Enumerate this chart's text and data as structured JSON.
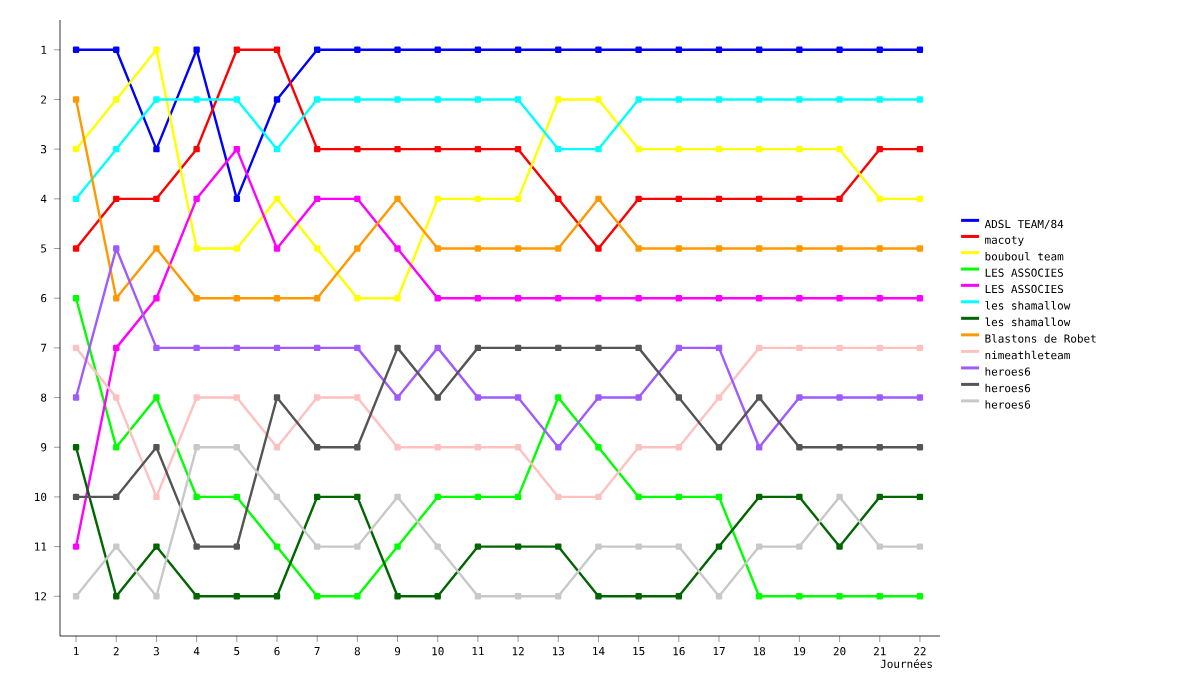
{
  "chart_data": {
    "type": "line",
    "xlabel": "Journées",
    "xlim": [
      0.6,
      22.5
    ],
    "ylim": [
      12.8,
      0.4
    ],
    "xticks": [
      1,
      2,
      3,
      4,
      5,
      6,
      7,
      8,
      9,
      10,
      11,
      12,
      13,
      14,
      15,
      16,
      17,
      18,
      19,
      20,
      21,
      22
    ],
    "yticks": [
      1,
      2,
      3,
      4,
      5,
      6,
      7,
      8,
      9,
      10,
      11,
      12
    ],
    "x": [
      1,
      2,
      3,
      4,
      5,
      6,
      7,
      8,
      9,
      10,
      11,
      12,
      13,
      14,
      15,
      16,
      17,
      18,
      19,
      20,
      21,
      22
    ],
    "legend": "right",
    "marker": "square",
    "line_style": "solid",
    "grid": false,
    "series": [
      {
        "name": "ADSL TEAM/84",
        "color": "#0000ff",
        "values": [
          1,
          1,
          3,
          1,
          4,
          2,
          1,
          1,
          1,
          1,
          1,
          1,
          1,
          1,
          1,
          1,
          1,
          1,
          1,
          1,
          1,
          1
        ]
      },
      {
        "name": "macoty",
        "color": "#ff0000",
        "values": [
          5,
          4,
          4,
          3,
          1,
          1,
          3,
          3,
          3,
          3,
          3,
          3,
          4,
          5,
          4,
          4,
          4,
          4,
          4,
          4,
          3,
          3
        ]
      },
      {
        "name": "bouboul team",
        "color": "#ffff00",
        "values": [
          3,
          2,
          1,
          5,
          5,
          4,
          5,
          6,
          6,
          4,
          4,
          4,
          2,
          2,
          3,
          3,
          3,
          3,
          3,
          3,
          4,
          4
        ]
      },
      {
        "name": "LES ASSOCIES",
        "color": "#00ff00",
        "values": [
          6,
          9,
          8,
          10,
          10,
          11,
          12,
          12,
          11,
          10,
          10,
          10,
          8,
          9,
          10,
          10,
          10,
          12,
          12,
          12,
          12,
          12
        ]
      },
      {
        "name": "LES ASSOCIES",
        "color": "#ff00ff",
        "values": [
          11,
          7,
          6,
          4,
          3,
          5,
          4,
          4,
          5,
          6,
          6,
          6,
          6,
          6,
          6,
          6,
          6,
          6,
          6,
          6,
          6,
          6
        ]
      },
      {
        "name": "les shamallow",
        "color": "#00ffff",
        "values": [
          4,
          3,
          2,
          2,
          2,
          3,
          2,
          2,
          2,
          2,
          2,
          2,
          3,
          3,
          2,
          2,
          2,
          2,
          2,
          2,
          2,
          2
        ]
      },
      {
        "name": "les shamallow",
        "color": "#006600",
        "values": [
          9,
          12,
          11,
          12,
          12,
          12,
          10,
          10,
          12,
          12,
          11,
          11,
          11,
          12,
          12,
          12,
          11,
          10,
          10,
          11,
          10,
          10
        ]
      },
      {
        "name": "Blastons de Robet",
        "color": "#ff9900",
        "values": [
          2,
          6,
          5,
          6,
          6,
          6,
          6,
          5,
          4,
          5,
          5,
          5,
          5,
          4,
          5,
          5,
          5,
          5,
          5,
          5,
          5,
          5
        ]
      },
      {
        "name": "nimeathleteam",
        "color": "#ffc0c0",
        "values": [
          7,
          8,
          10,
          8,
          8,
          9,
          8,
          8,
          9,
          9,
          9,
          9,
          10,
          10,
          9,
          9,
          8,
          7,
          7,
          7,
          7,
          7
        ]
      },
      {
        "name": "heroes6",
        "color": "#a05aff",
        "values": [
          8,
          5,
          7,
          7,
          7,
          7,
          7,
          7,
          8,
          7,
          8,
          8,
          9,
          8,
          8,
          7,
          7,
          9,
          8,
          8,
          8,
          8
        ]
      },
      {
        "name": "heroes6",
        "color": "#555555",
        "values": [
          10,
          10,
          9,
          11,
          11,
          8,
          9,
          9,
          7,
          8,
          7,
          7,
          7,
          7,
          7,
          8,
          9,
          8,
          9,
          9,
          9,
          9
        ]
      },
      {
        "name": "heroes6",
        "color": "#c8c8c8",
        "values": [
          12,
          11,
          12,
          9,
          9,
          10,
          11,
          11,
          10,
          11,
          12,
          12,
          12,
          11,
          11,
          11,
          12,
          11,
          11,
          10,
          11,
          11
        ]
      }
    ]
  }
}
